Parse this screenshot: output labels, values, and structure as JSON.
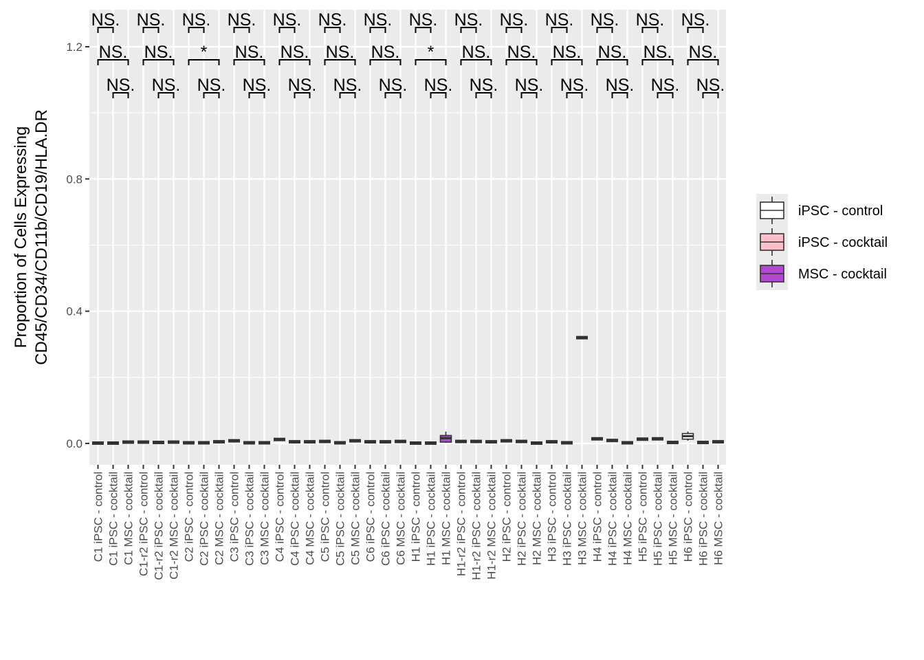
{
  "chart_data": {
    "type": "box",
    "title": "",
    "xlabel": "",
    "ylabel_lines": [
      "Proportion of Cells Expressing",
      "CD45/CD34/CD11b/CD19/HLA.DR"
    ],
    "ylim": [
      -0.065,
      1.24
    ],
    "yticks": [
      0.0,
      0.4,
      0.8,
      1.2
    ],
    "ytick_labels": [
      "0.0",
      "0.4",
      "0.8",
      "1.2"
    ],
    "grid": true,
    "legend": {
      "position": "right",
      "entries": [
        {
          "label": "iPSC - control",
          "color": "#ffffff"
        },
        {
          "label": "iPSC - cocktail",
          "color": "#ffc0cb"
        },
        {
          "label": "MSC - cocktail",
          "color": "#b048d0"
        }
      ]
    },
    "boxes": [
      {
        "category": "C1 iPSC - control",
        "group": 0,
        "value": 0.001
      },
      {
        "category": "C1 iPSC - cocktail",
        "group": 1,
        "value": 0.001
      },
      {
        "category": "C1 MSC - cocktail",
        "group": 2,
        "value": 0.004
      },
      {
        "category": "C1-r2 iPSC - control",
        "group": 0,
        "value": 0.004
      },
      {
        "category": "C1-r2 iPSC - cocktail",
        "group": 1,
        "value": 0.003
      },
      {
        "category": "C1-r2 MSC - cocktail",
        "group": 2,
        "value": 0.004
      },
      {
        "category": "C2 iPSC - control",
        "group": 0,
        "value": 0.002
      },
      {
        "category": "C2 iPSC - cocktail",
        "group": 1,
        "value": 0.002
      },
      {
        "category": "C2 MSC - cocktail",
        "group": 2,
        "value": 0.005
      },
      {
        "category": "C3 iPSC - control",
        "group": 0,
        "value": 0.008
      },
      {
        "category": "C3 iPSC - cocktail",
        "group": 1,
        "value": 0.002
      },
      {
        "category": "C3 MSC - cocktail",
        "group": 2,
        "value": 0.002
      },
      {
        "category": "C4 iPSC - control",
        "group": 0,
        "value": 0.012
      },
      {
        "category": "C4 iPSC - cocktail",
        "group": 1,
        "value": 0.005
      },
      {
        "category": "C4 MSC - cocktail",
        "group": 2,
        "value": 0.005
      },
      {
        "category": "C5 iPSC - control",
        "group": 0,
        "value": 0.006
      },
      {
        "category": "C5 iPSC - cocktail",
        "group": 1,
        "value": 0.002
      },
      {
        "category": "C5 MSC - cocktail",
        "group": 2,
        "value": 0.008
      },
      {
        "category": "C6 iPSC - control",
        "group": 0,
        "value": 0.005
      },
      {
        "category": "C6 iPSC - cocktail",
        "group": 1,
        "value": 0.005
      },
      {
        "category": "C6 MSC - cocktail",
        "group": 2,
        "value": 0.006
      },
      {
        "category": "H1 iPSC - control",
        "group": 0,
        "value": 0.001
      },
      {
        "category": "H1 iPSC - cocktail",
        "group": 1,
        "value": 0.001
      },
      {
        "category": "H1 MSC - cocktail",
        "group": 2,
        "value": 0.016,
        "q1": 0.004,
        "q3": 0.024,
        "whisker_low": 0.002,
        "whisker_high": 0.036
      },
      {
        "category": "H1-r2 iPSC - control",
        "group": 0,
        "value": 0.006
      },
      {
        "category": "H1-r2 iPSC - cocktail",
        "group": 1,
        "value": 0.006
      },
      {
        "category": "H1-r2 MSC - cocktail",
        "group": 2,
        "value": 0.005
      },
      {
        "category": "H2 iPSC - control",
        "group": 0,
        "value": 0.008
      },
      {
        "category": "H2 iPSC - cocktail",
        "group": 1,
        "value": 0.006
      },
      {
        "category": "H2 MSC - cocktail",
        "group": 2,
        "value": 0.001
      },
      {
        "category": "H3 iPSC - control",
        "group": 0,
        "value": 0.005
      },
      {
        "category": "H3 iPSC - cocktail",
        "group": 1,
        "value": 0.002
      },
      {
        "category": "H3 MSC - cocktail",
        "group": 2,
        "value": 0.32
      },
      {
        "category": "H4 iPSC - control",
        "group": 0,
        "value": 0.014
      },
      {
        "category": "H4 iPSC - cocktail",
        "group": 1,
        "value": 0.009
      },
      {
        "category": "H4 MSC - cocktail",
        "group": 2,
        "value": 0.002
      },
      {
        "category": "H5 iPSC - control",
        "group": 0,
        "value": 0.013
      },
      {
        "category": "H5 iPSC - cocktail",
        "group": 1,
        "value": 0.014
      },
      {
        "category": "H5 MSC - cocktail",
        "group": 2,
        "value": 0.003
      },
      {
        "category": "H6 iPSC - control",
        "group": 0,
        "value": 0.022,
        "q1": 0.013,
        "q3": 0.03,
        "whisker_low": 0.008,
        "whisker_high": 0.036
      },
      {
        "category": "H6 iPSC - cocktail",
        "group": 1,
        "value": 0.003
      },
      {
        "category": "H6 MSC - cocktail",
        "group": 2,
        "value": 0.005
      }
    ],
    "annotations": [
      {
        "label": "NS.",
        "from": 0,
        "to": 1,
        "level": 0
      },
      {
        "label": "NS.",
        "from": 0,
        "to": 2,
        "level": 1
      },
      {
        "label": "NS.",
        "from": 1,
        "to": 2,
        "level": 2
      },
      {
        "label": "NS.",
        "from": 3,
        "to": 4,
        "level": 0
      },
      {
        "label": "NS.",
        "from": 3,
        "to": 5,
        "level": 1
      },
      {
        "label": "NS.",
        "from": 4,
        "to": 5,
        "level": 2
      },
      {
        "label": "NS.",
        "from": 6,
        "to": 7,
        "level": 0
      },
      {
        "label": "*",
        "from": 6,
        "to": 8,
        "level": 1
      },
      {
        "label": "NS.",
        "from": 7,
        "to": 8,
        "level": 2
      },
      {
        "label": "NS.",
        "from": 9,
        "to": 10,
        "level": 0
      },
      {
        "label": "NS.",
        "from": 9,
        "to": 11,
        "level": 1
      },
      {
        "label": "NS.",
        "from": 10,
        "to": 11,
        "level": 2
      },
      {
        "label": "NS.",
        "from": 12,
        "to": 13,
        "level": 0
      },
      {
        "label": "NS.",
        "from": 12,
        "to": 14,
        "level": 1
      },
      {
        "label": "NS.",
        "from": 13,
        "to": 14,
        "level": 2
      },
      {
        "label": "NS.",
        "from": 15,
        "to": 16,
        "level": 0
      },
      {
        "label": "NS.",
        "from": 15,
        "to": 17,
        "level": 1
      },
      {
        "label": "NS.",
        "from": 16,
        "to": 17,
        "level": 2
      },
      {
        "label": "NS.",
        "from": 18,
        "to": 19,
        "level": 0
      },
      {
        "label": "NS.",
        "from": 18,
        "to": 20,
        "level": 1
      },
      {
        "label": "NS.",
        "from": 19,
        "to": 20,
        "level": 2
      },
      {
        "label": "NS.",
        "from": 21,
        "to": 22,
        "level": 0
      },
      {
        "label": "*",
        "from": 21,
        "to": 23,
        "level": 1
      },
      {
        "label": "NS.",
        "from": 22,
        "to": 23,
        "level": 2
      },
      {
        "label": "NS.",
        "from": 24,
        "to": 25,
        "level": 0
      },
      {
        "label": "NS.",
        "from": 24,
        "to": 26,
        "level": 1
      },
      {
        "label": "NS.",
        "from": 25,
        "to": 26,
        "level": 2
      },
      {
        "label": "NS.",
        "from": 27,
        "to": 28,
        "level": 0
      },
      {
        "label": "NS.",
        "from": 27,
        "to": 29,
        "level": 1
      },
      {
        "label": "NS.",
        "from": 28,
        "to": 29,
        "level": 2
      },
      {
        "label": "NS.",
        "from": 30,
        "to": 31,
        "level": 0
      },
      {
        "label": "NS.",
        "from": 30,
        "to": 32,
        "level": 1
      },
      {
        "label": "NS.",
        "from": 31,
        "to": 32,
        "level": 2
      },
      {
        "label": "NS.",
        "from": 33,
        "to": 34,
        "level": 0
      },
      {
        "label": "NS.",
        "from": 33,
        "to": 35,
        "level": 1
      },
      {
        "label": "NS.",
        "from": 34,
        "to": 35,
        "level": 2
      },
      {
        "label": "NS.",
        "from": 36,
        "to": 37,
        "level": 0
      },
      {
        "label": "NS.",
        "from": 36,
        "to": 38,
        "level": 1
      },
      {
        "label": "NS.",
        "from": 37,
        "to": 38,
        "level": 2
      },
      {
        "label": "NS.",
        "from": 39,
        "to": 40,
        "level": 0
      },
      {
        "label": "NS.",
        "from": 39,
        "to": 41,
        "level": 1
      },
      {
        "label": "NS.",
        "from": 40,
        "to": 41,
        "level": 2
      }
    ]
  }
}
